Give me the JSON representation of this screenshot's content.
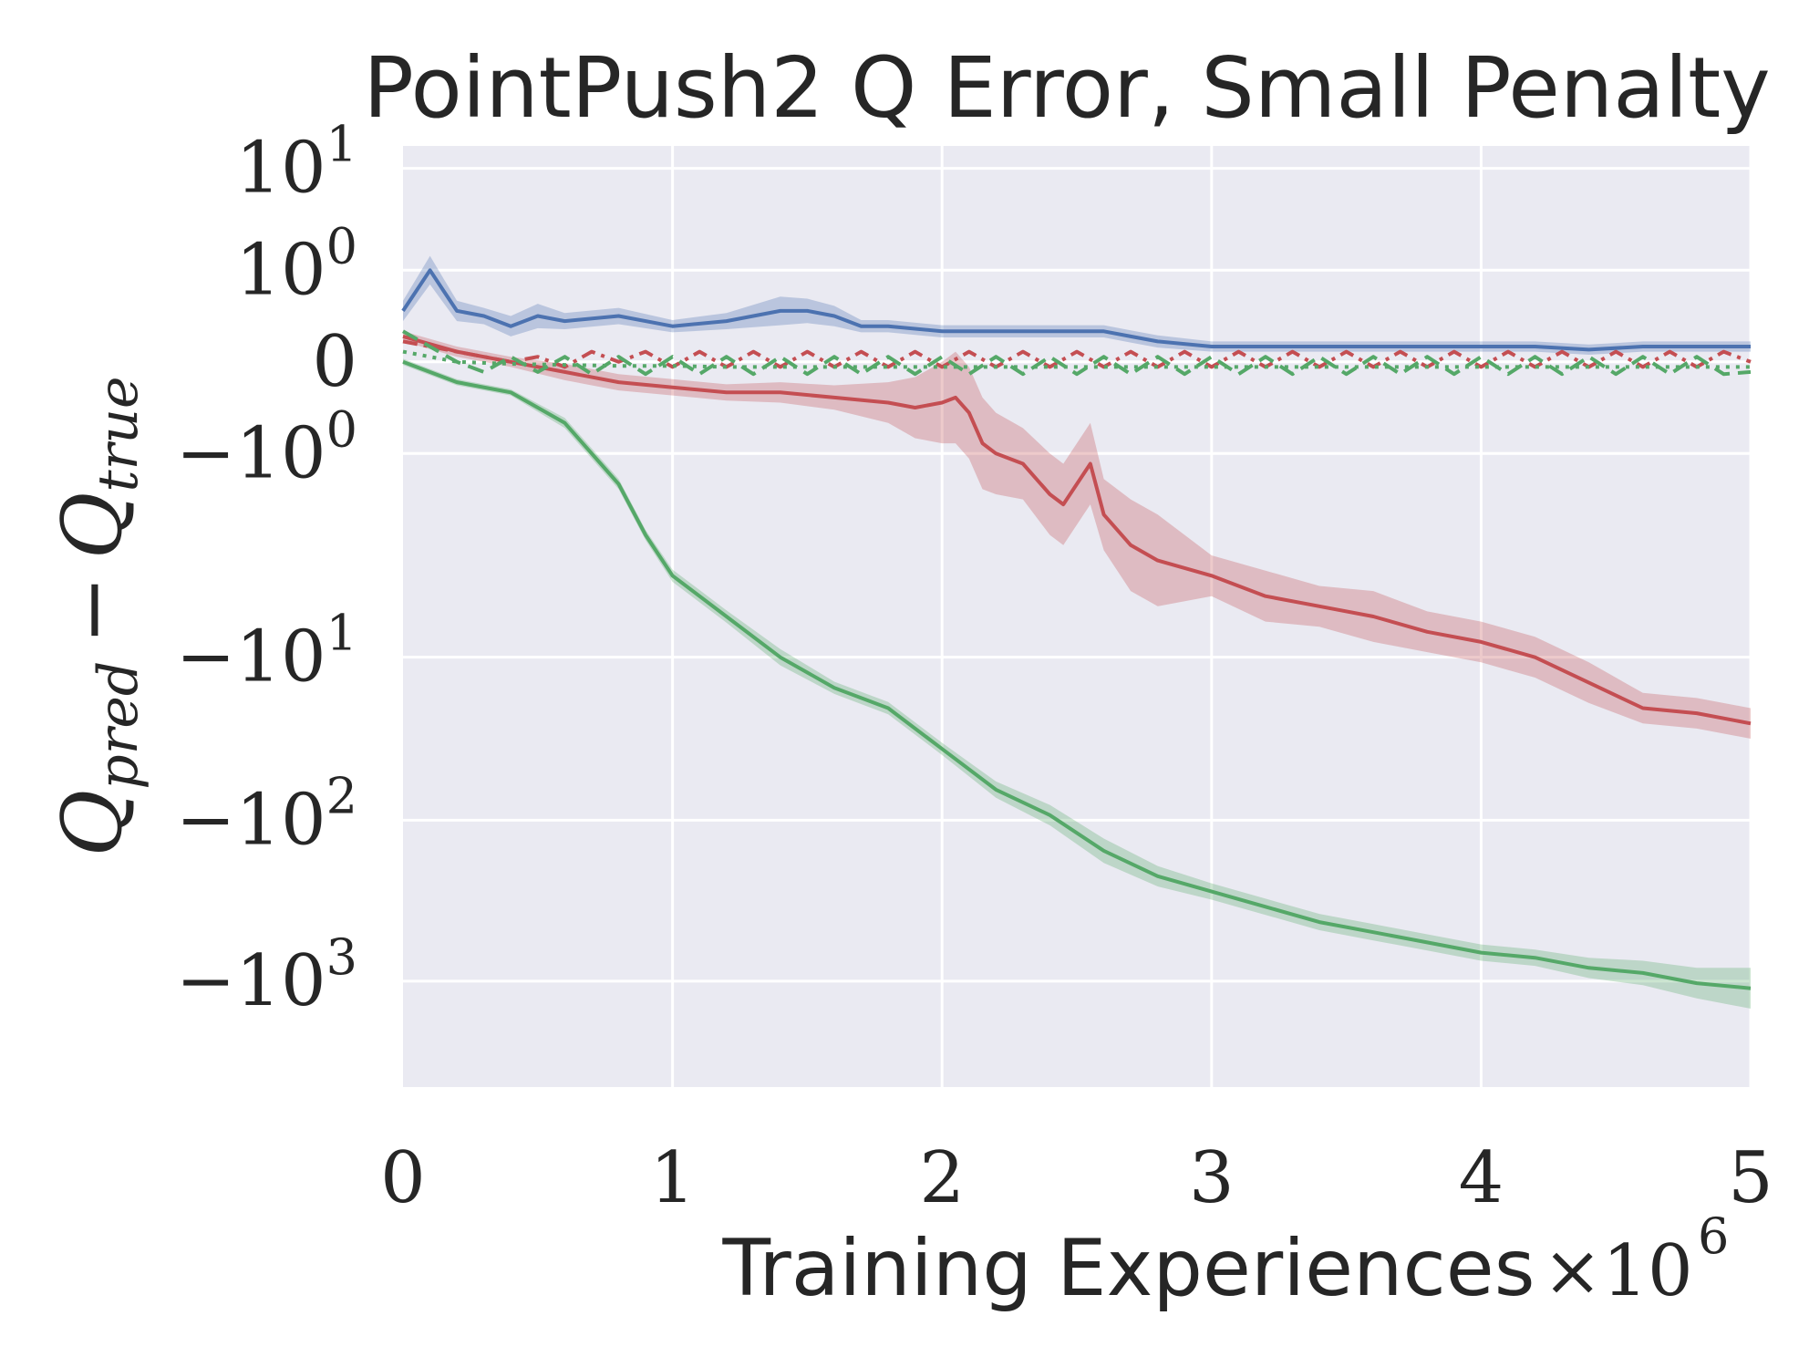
{
  "colors": {
    "background": "#ffffff",
    "plot_bg": "#eaeaf2",
    "grid": "#ffffff",
    "text": "#262626"
  },
  "chart_data": {
    "type": "line",
    "title": "PointPush2 Q Error, Small Penalty",
    "xlabel": "Training Experiences",
    "ylabel": {
      "base": "Q",
      "sub1": "pred",
      "minus": "−",
      "sub2": "true"
    },
    "x_multiplier": {
      "base": "×10",
      "exp": "6"
    },
    "xlim": [
      0,
      5
    ],
    "ylim_tick_units": [
      -7.12,
      2.12
    ],
    "xticks": [
      {
        "value": 0,
        "label": "0"
      },
      {
        "value": 1,
        "label": "1"
      },
      {
        "value": 2,
        "label": "2"
      },
      {
        "value": 3,
        "label": "3"
      },
      {
        "value": 4,
        "label": "4"
      },
      {
        "value": 5,
        "label": "5"
      }
    ],
    "yticks": [
      {
        "value": 10,
        "pos": 1.9,
        "sign": "",
        "base": "10",
        "exp": "1"
      },
      {
        "value": 1,
        "pos": 0.9,
        "sign": "",
        "base": "10",
        "exp": "0"
      },
      {
        "value": 0,
        "pos": 0,
        "sign": "",
        "base": "0",
        "exp": ""
      },
      {
        "value": -1,
        "pos": -0.9,
        "sign": "−",
        "base": "10",
        "exp": "0"
      },
      {
        "value": -10,
        "pos": -2.9,
        "sign": "−",
        "base": "10",
        "exp": "1"
      },
      {
        "value": -100,
        "pos": -4.5,
        "sign": "−",
        "base": "10",
        "exp": "2"
      },
      {
        "value": -1000,
        "pos": -6.08,
        "sign": "−",
        "base": "10",
        "exp": "3"
      }
    ],
    "series": [
      {
        "name": "blue-solid",
        "color": "#4c72b0",
        "style": "solid",
        "x": [
          0,
          0.05,
          0.1,
          0.15,
          0.2,
          0.3,
          0.4,
          0.5,
          0.6,
          0.8,
          1.0,
          1.2,
          1.4,
          1.5,
          1.6,
          1.7,
          1.8,
          2.0,
          2.2,
          2.4,
          2.6,
          2.7,
          2.8,
          3.0,
          3.2,
          3.4,
          3.5,
          3.6,
          3.8,
          4.0,
          4.2,
          4.4,
          4.6,
          4.8,
          5.0
        ],
        "y": [
          0.5,
          0.7,
          0.9,
          0.7,
          0.5,
          0.45,
          0.35,
          0.45,
          0.4,
          0.45,
          0.35,
          0.4,
          0.5,
          0.5,
          0.45,
          0.35,
          0.35,
          0.3,
          0.3,
          0.3,
          0.3,
          0.25,
          0.2,
          0.15,
          0.15,
          0.15,
          0.15,
          0.15,
          0.15,
          0.15,
          0.15,
          0.12,
          0.15,
          0.15,
          0.15
        ],
        "band": [
          0.1,
          0.12,
          0.14,
          0.12,
          0.1,
          0.08,
          0.1,
          0.12,
          0.08,
          0.08,
          0.06,
          0.08,
          0.14,
          0.12,
          0.1,
          0.06,
          0.06,
          0.06,
          0.06,
          0.06,
          0.06,
          0.06,
          0.06,
          0.05,
          0.05,
          0.05,
          0.05,
          0.05,
          0.05,
          0.05,
          0.05,
          0.05,
          0.05,
          0.05,
          0.05
        ]
      },
      {
        "name": "red-solid",
        "color": "#c44e52",
        "style": "solid",
        "x": [
          0,
          0.2,
          0.4,
          0.6,
          0.8,
          1.0,
          1.2,
          1.4,
          1.6,
          1.8,
          1.9,
          2.0,
          2.05,
          2.1,
          2.15,
          2.2,
          2.3,
          2.4,
          2.45,
          2.55,
          2.6,
          2.7,
          2.8,
          3.0,
          3.2,
          3.4,
          3.6,
          3.8,
          4.0,
          4.2,
          4.4,
          4.6,
          4.8,
          5.0
        ],
        "y": [
          0.25,
          0.1,
          0.0,
          -0.1,
          -0.2,
          -0.25,
          -0.3,
          -0.3,
          -0.35,
          -0.4,
          -0.45,
          -0.4,
          -0.35,
          -0.5,
          -0.8,
          -0.9,
          -1.0,
          -1.3,
          -1.4,
          -1.0,
          -1.5,
          -1.8,
          -1.95,
          -2.1,
          -2.3,
          -2.4,
          -2.5,
          -2.65,
          -2.75,
          -2.9,
          -3.15,
          -3.4,
          -3.45,
          -3.55
        ],
        "band": [
          0.05,
          0.05,
          0.05,
          0.08,
          0.08,
          0.08,
          0.08,
          0.1,
          0.12,
          0.2,
          0.3,
          0.4,
          0.45,
          0.45,
          0.45,
          0.4,
          0.35,
          0.4,
          0.4,
          0.4,
          0.35,
          0.45,
          0.45,
          0.2,
          0.25,
          0.2,
          0.25,
          0.2,
          0.2,
          0.2,
          0.2,
          0.15,
          0.15,
          0.15
        ]
      },
      {
        "name": "green-solid",
        "color": "#55a868",
        "style": "solid",
        "x": [
          0,
          0.2,
          0.4,
          0.6,
          0.8,
          0.9,
          1.0,
          1.2,
          1.4,
          1.6,
          1.8,
          2.0,
          2.2,
          2.4,
          2.6,
          2.8,
          3.0,
          3.2,
          3.4,
          3.6,
          3.8,
          4.0,
          4.2,
          4.4,
          4.6,
          4.8,
          5.0
        ],
        "y": [
          0.0,
          -0.2,
          -0.3,
          -0.6,
          -1.2,
          -1.7,
          -2.1,
          -2.5,
          -2.9,
          -3.2,
          -3.4,
          -3.8,
          -4.2,
          -4.45,
          -4.8,
          -5.05,
          -5.2,
          -5.35,
          -5.5,
          -5.6,
          -5.7,
          -5.8,
          -5.85,
          -5.95,
          -6.0,
          -6.1,
          -6.15
        ],
        "band": [
          0.03,
          0.03,
          0.03,
          0.05,
          0.05,
          0.05,
          0.06,
          0.06,
          0.08,
          0.06,
          0.06,
          0.06,
          0.08,
          0.1,
          0.12,
          0.1,
          0.08,
          0.08,
          0.08,
          0.08,
          0.08,
          0.08,
          0.08,
          0.1,
          0.12,
          0.15,
          0.2
        ]
      },
      {
        "name": "red-dash-dot",
        "color": "#c44e52",
        "style": "dashdot",
        "x": [
          0,
          0.2,
          0.3,
          0.4,
          0.5,
          0.6,
          0.7,
          0.8,
          0.9,
          1.0,
          1.1,
          1.2,
          1.3,
          1.4,
          1.5,
          1.6,
          1.7,
          1.8,
          1.9,
          2.0,
          2.1,
          2.2,
          2.3,
          2.4,
          2.5,
          2.6,
          2.7,
          2.8,
          2.9,
          3.0,
          3.1,
          3.2,
          3.3,
          3.4,
          3.5,
          3.6,
          3.7,
          3.8,
          3.9,
          4.0,
          4.1,
          4.2,
          4.3,
          4.4,
          4.5,
          4.6,
          4.7,
          4.8,
          4.9,
          5.0
        ],
        "y": [
          0.2,
          0.1,
          0.05,
          0.0,
          0.05,
          -0.05,
          0.1,
          0.0,
          0.1,
          -0.05,
          0.1,
          -0.05,
          0.1,
          -0.05,
          0.1,
          -0.05,
          0.1,
          -0.05,
          0.1,
          -0.05,
          0.1,
          -0.05,
          0.1,
          -0.05,
          0.1,
          -0.05,
          0.1,
          -0.05,
          0.1,
          -0.05,
          0.1,
          -0.05,
          0.1,
          -0.05,
          0.1,
          -0.05,
          0.1,
          -0.05,
          0.1,
          -0.05,
          0.1,
          -0.05,
          0.1,
          -0.05,
          0.1,
          -0.05,
          0.1,
          -0.05,
          0.1,
          0.0
        ]
      },
      {
        "name": "green-dash",
        "color": "#55a868",
        "style": "dashed",
        "x": [
          0,
          0.2,
          0.3,
          0.4,
          0.5,
          0.6,
          0.7,
          0.8,
          0.9,
          1.0,
          1.1,
          1.2,
          1.3,
          1.4,
          1.5,
          1.6,
          1.7,
          1.8,
          1.9,
          2.0,
          2.1,
          2.2,
          2.3,
          2.4,
          2.5,
          2.6,
          2.7,
          2.8,
          2.9,
          3.0,
          3.1,
          3.2,
          3.3,
          3.4,
          3.5,
          3.6,
          3.7,
          3.8,
          3.9,
          4.0,
          4.1,
          4.2,
          4.3,
          4.4,
          4.5,
          4.6,
          4.7,
          4.8,
          4.9,
          5.0
        ],
        "y": [
          0.3,
          0.0,
          -0.1,
          0.05,
          -0.1,
          0.05,
          -0.12,
          0.05,
          -0.12,
          0.05,
          -0.12,
          0.05,
          -0.12,
          0.05,
          -0.12,
          0.05,
          -0.12,
          0.05,
          -0.12,
          0.05,
          -0.12,
          0.05,
          -0.12,
          0.05,
          -0.12,
          0.05,
          -0.12,
          0.05,
          -0.12,
          0.05,
          -0.12,
          0.05,
          -0.12,
          0.05,
          -0.12,
          0.05,
          -0.12,
          0.05,
          -0.12,
          0.05,
          -0.12,
          0.05,
          -0.12,
          0.05,
          -0.12,
          0.05,
          -0.12,
          0.05,
          -0.12,
          -0.1
        ]
      },
      {
        "name": "green-dot",
        "color": "#55a868",
        "style": "dotted",
        "x": [
          0,
          0.2,
          0.4,
          0.6,
          0.8,
          1.0,
          1.2,
          1.4,
          1.6,
          1.8,
          2.0,
          2.2,
          2.4,
          2.6,
          2.8,
          3.0,
          3.2,
          3.4,
          3.6,
          3.8,
          4.0,
          4.2,
          4.4,
          4.6,
          4.8,
          5.0
        ],
        "y": [
          0.1,
          0.0,
          -0.02,
          -0.03,
          -0.04,
          -0.04,
          -0.05,
          -0.05,
          -0.05,
          -0.05,
          -0.05,
          -0.05,
          -0.05,
          -0.05,
          -0.05,
          -0.05,
          -0.05,
          -0.05,
          -0.05,
          -0.05,
          -0.05,
          -0.05,
          -0.05,
          -0.05,
          -0.05,
          -0.05
        ]
      }
    ]
  }
}
